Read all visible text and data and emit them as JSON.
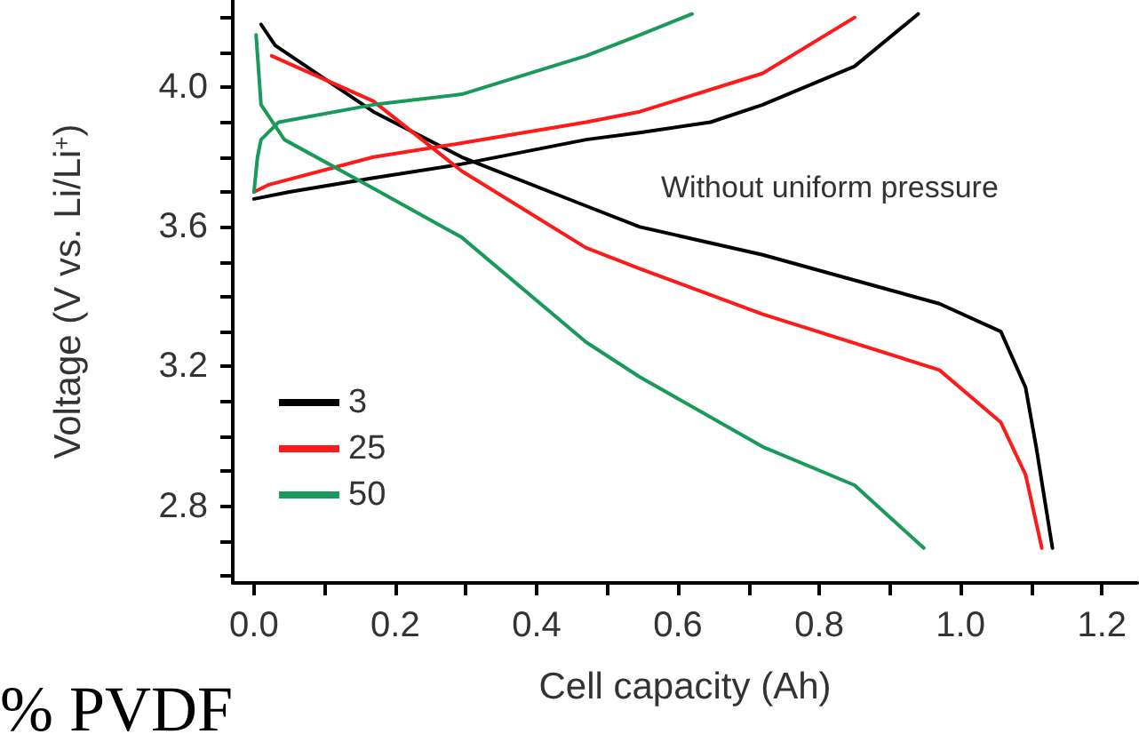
{
  "chart_data": {
    "type": "line",
    "xlabel": "Cell capacity (Ah)",
    "ylabel": "Voltage (V vs. Li/Li$^{+}$)",
    "annotations": [
      "Without uniform pressure",
      "% PVDF"
    ],
    "xlim": [
      -0.03,
      1.25
    ],
    "ylim": [
      2.58,
      4.25
    ],
    "xticks": [
      {
        "value": 0,
        "label": "0.0"
      },
      {
        "value": 0.1,
        "label": null
      },
      0.2,
      {
        "value": 0.3,
        "label": null
      },
      0.4,
      {
        "value": 0.5,
        "label": null
      },
      0.6,
      {
        "value": 0.7,
        "label": null
      },
      0.8,
      {
        "value": 0.9,
        "label": null
      },
      {
        "value": 1,
        "label": "1.0"
      },
      {
        "value": 1.1,
        "label": null
      },
      1.2
    ],
    "yticks": [
      {
        "value": 2.6,
        "label": null
      },
      {
        "value": 2.7,
        "label": null
      },
      2.8,
      {
        "value": 2.9,
        "label": null
      },
      {
        "value": 3.0,
        "label": null
      },
      {
        "value": 3.1,
        "label": null
      },
      3.2,
      {
        "value": 3.3,
        "label": null
      },
      {
        "value": 3.4,
        "label": null
      },
      {
        "value": 3.5,
        "label": null
      },
      3.6,
      {
        "value": 3.7,
        "label": null
      },
      {
        "value": 3.8,
        "label": null
      },
      {
        "value": 3.9,
        "label": null
      },
      {
        "value": 4,
        "label": "4.0"
      },
      {
        "value": 4.1,
        "label": null
      },
      {
        "value": 4.2,
        "label": null
      }
    ],
    "grid": false,
    "legend": "bottom left",
    "marker": "none",
    "line_style": "solid",
    "series": [
      {
        "name": "3",
        "color": "#000000",
        "x": [
          0,
          0.05,
          0.169,
          0.294,
          0.47,
          0.546,
          0.646,
          0.72,
          0.85,
          0.94,
          null,
          0.01,
          0.03,
          0.169,
          0.294,
          0.47,
          0.546,
          0.72,
          0.97,
          1.057,
          1.092,
          1.107,
          1.13
        ],
        "values": [
          3.68,
          3.7,
          3.74,
          3.78,
          3.85,
          3.87,
          3.9,
          3.95,
          4.06,
          4.21,
          null,
          4.18,
          4.12,
          3.93,
          3.8,
          3.66,
          3.6,
          3.52,
          3.38,
          3.3,
          3.14,
          2.97,
          2.68
        ]
      },
      {
        "name": "25",
        "color": "#ff1a1a",
        "x": [
          0,
          0.02,
          0.169,
          0.294,
          0.47,
          0.546,
          0.72,
          0.85,
          null,
          0.025,
          0.169,
          0.294,
          0.47,
          0.546,
          0.72,
          0.97,
          1.057,
          1.092,
          1.115
        ],
        "values": [
          3.7,
          3.72,
          3.8,
          3.84,
          3.9,
          3.93,
          4.04,
          4.2,
          null,
          4.09,
          3.96,
          3.76,
          3.54,
          3.48,
          3.35,
          3.19,
          3.04,
          2.89,
          2.68
        ]
      },
      {
        "name": "50",
        "color": "#1a9a5a",
        "x": [
          0,
          0.005,
          0.01,
          0.035,
          0.169,
          0.294,
          0.47,
          0.546,
          0.62,
          null,
          0.003,
          0.01,
          0.043,
          0.169,
          0.294,
          0.47,
          0.546,
          0.72,
          0.85,
          0.948
        ],
        "values": [
          3.7,
          3.8,
          3.85,
          3.9,
          3.95,
          3.98,
          4.09,
          4.15,
          4.21,
          null,
          4.15,
          3.95,
          3.85,
          3.71,
          3.57,
          3.27,
          3.17,
          2.97,
          2.86,
          2.68
        ]
      }
    ]
  }
}
